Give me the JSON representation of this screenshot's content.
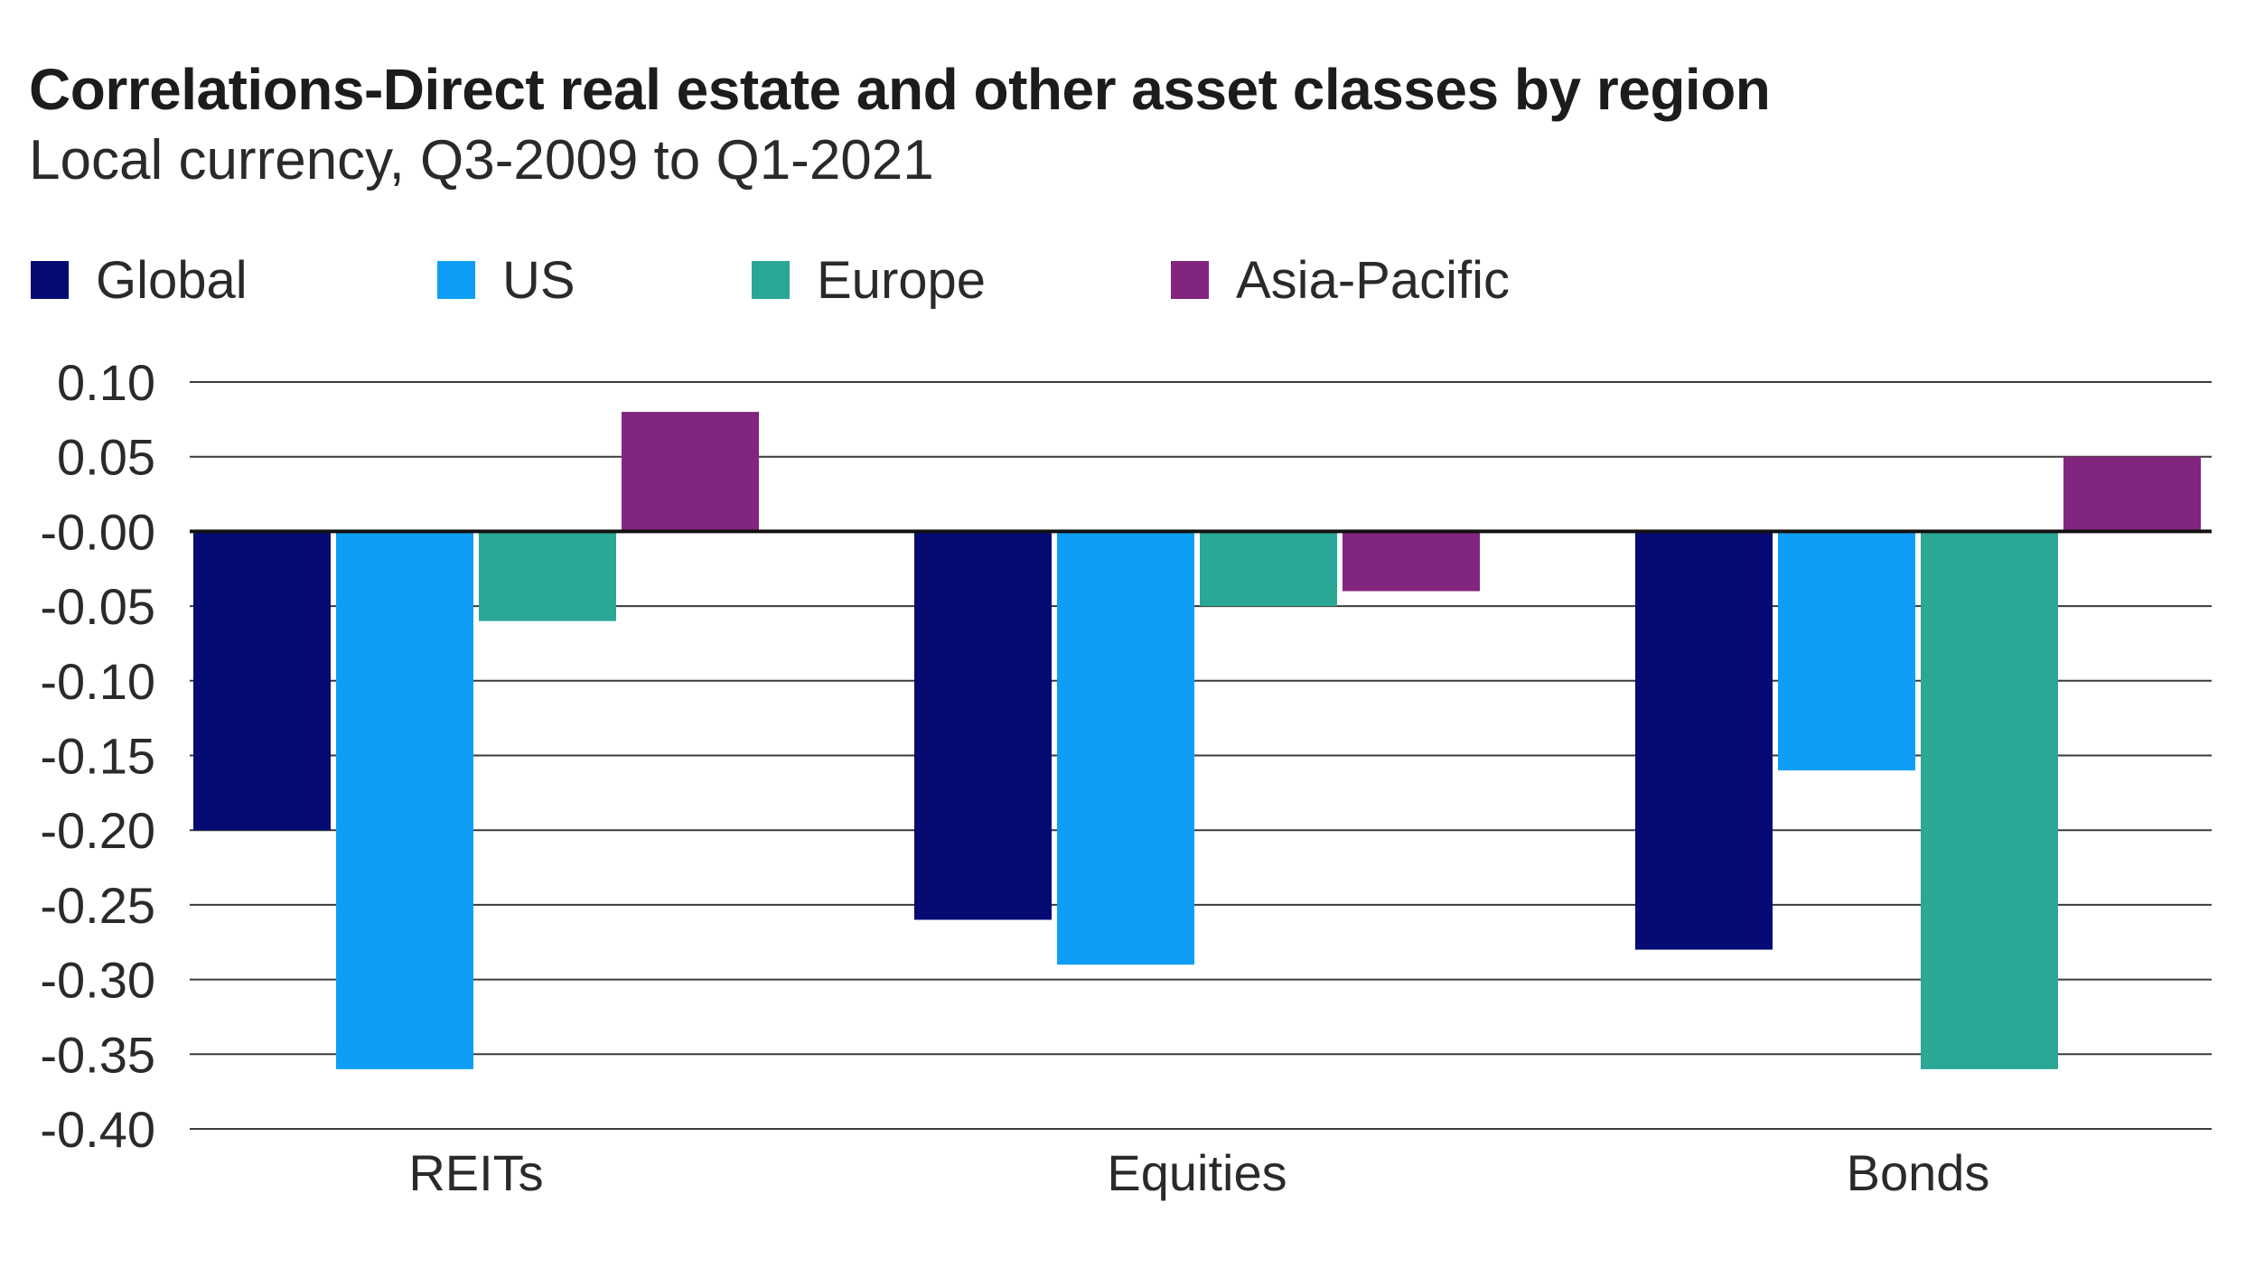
{
  "chart_data": {
    "type": "bar",
    "title": "Correlations-Direct real estate and other asset classes by region",
    "subtitle": "Local currency, Q3-2009 to Q1-2021",
    "categories": [
      "REITs",
      "Equities",
      "Bonds"
    ],
    "series": [
      {
        "name": "Global",
        "color": "#060a73",
        "values": [
          -0.2,
          -0.26,
          -0.28
        ]
      },
      {
        "name": "US",
        "color": "#0f9ef7",
        "values": [
          -0.36,
          -0.29,
          -0.16
        ]
      },
      {
        "name": "Europe",
        "color": "#2aa795",
        "values": [
          -0.06,
          -0.05,
          -0.36
        ]
      },
      {
        "name": "Asia-Pacific",
        "color": "#82257f",
        "values": [
          0.08,
          -0.04,
          0.05
        ]
      }
    ],
    "ylim": [
      -0.4,
      0.1
    ],
    "yticks": [
      "0.10",
      "0.05",
      "-0.00",
      "-0.05",
      "-0.10",
      "-0.15",
      "-0.20",
      "-0.25",
      "-0.30",
      "-0.35",
      "-0.40"
    ],
    "ytick_values": [
      0.1,
      0.05,
      0.0,
      -0.05,
      -0.1,
      -0.15,
      -0.2,
      -0.25,
      -0.3,
      -0.35,
      -0.4
    ],
    "xlabel": "",
    "ylabel": "",
    "grid": true,
    "legend_position": "top-left"
  }
}
